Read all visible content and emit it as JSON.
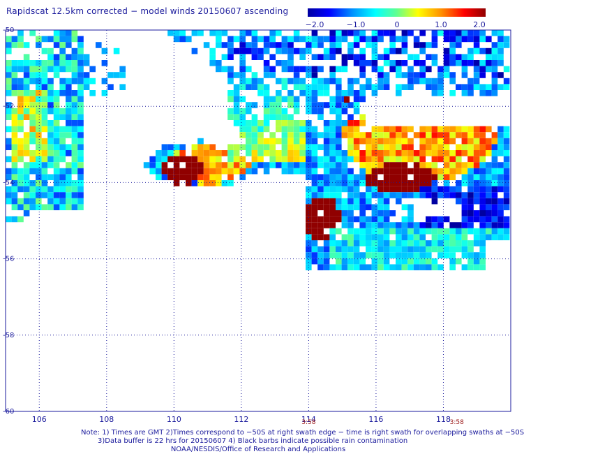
{
  "title": "Rapidscat 12.5km corrected − model winds 20150607 ascending",
  "colorbar": {
    "ticks": [
      "−2.0",
      "−1.0",
      "0",
      "1.0",
      "2.0"
    ],
    "tick_values": [
      -2,
      -1,
      0,
      1,
      2
    ],
    "colors": [
      "#0000a0",
      "#0000ff",
      "#0090ff",
      "#00ffff",
      "#60ff90",
      "#ffff00",
      "#ff9000",
      "#ff0000",
      "#900000"
    ]
  },
  "map": {
    "lon_range": [
      105,
      120
    ],
    "lat_range": [
      -50,
      -60
    ],
    "lon_ticks": [
      "106",
      "108",
      "110",
      "112",
      "114",
      "116",
      "118"
    ],
    "lon_tick_values": [
      106,
      108,
      110,
      112,
      114,
      116,
      118
    ],
    "lat_ticks": [
      "-50",
      "-52",
      "-54",
      "-56",
      "-58",
      "-60"
    ],
    "lat_tick_values": [
      -50,
      -52,
      -54,
      -56,
      -58,
      -60
    ],
    "swath_times": [
      {
        "label": "3:58",
        "lon": 114
      },
      {
        "label": "3:58",
        "lon": 118.4
      }
    ]
  },
  "notes": {
    "line1": "Note: 1) Times are GMT 2)Times correspond to −50S at right swath edge − time is right swath for overlapping swaths at −50S",
    "line2": "3)Data buffer is 22 hrs for 20150607 4) Black barbs indicate possible rain contamination",
    "line3": "NOAA/NESDIS/Office of Research and Applications"
  }
}
